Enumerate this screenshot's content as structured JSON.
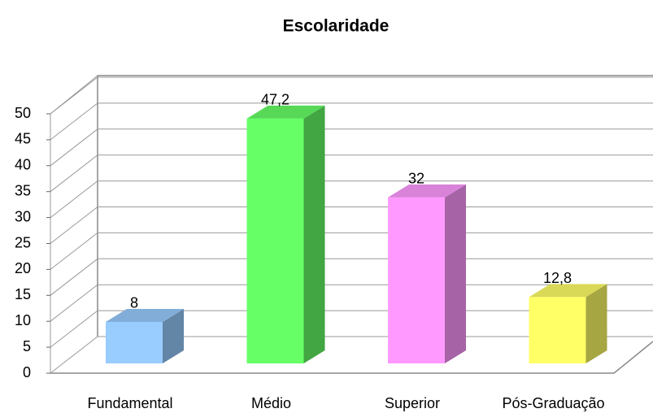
{
  "chart_data": {
    "type": "bar3d",
    "title": "Escolaridade",
    "categories": [
      "Fundamental",
      "Médio",
      "Superior",
      "Pós-Graduação"
    ],
    "values": [
      8,
      47.2,
      32,
      12.8
    ],
    "value_labels": [
      "8",
      "47,2",
      "32",
      "12,8"
    ],
    "colors": [
      "#99ccff",
      "#66ff66",
      "#ff99ff",
      "#ffff66"
    ],
    "ylim": [
      0,
      50
    ],
    "yticks": [
      0,
      5,
      10,
      15,
      20,
      25,
      30,
      35,
      40,
      45,
      50
    ],
    "grid": true
  }
}
